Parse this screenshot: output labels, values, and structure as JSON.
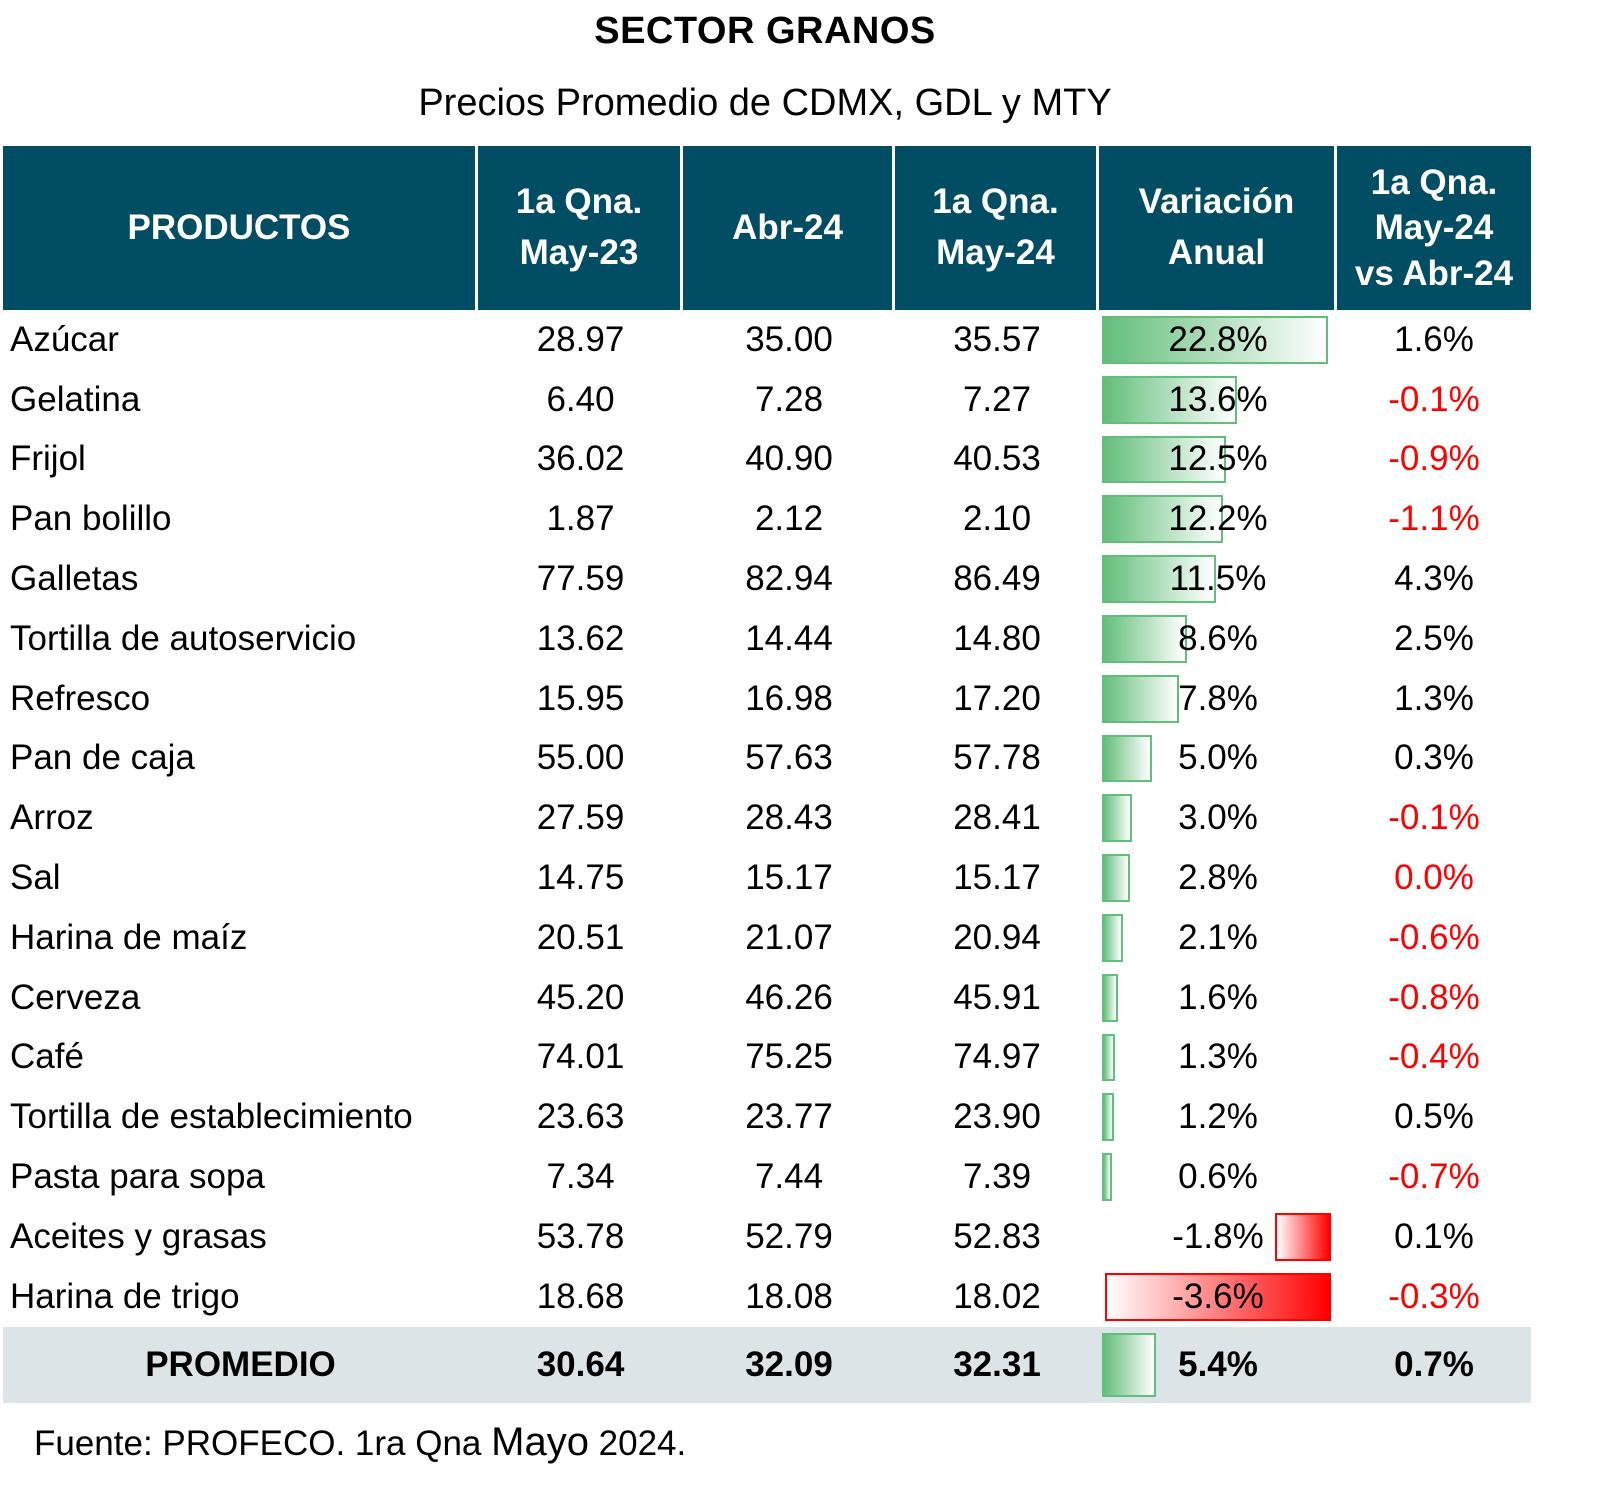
{
  "title": "SECTOR GRANOS",
  "subtitle": "Precios Promedio de CDMX, GDL y MTY",
  "colors": {
    "header_bg": "#014d63",
    "bar_positive": "#63be7b",
    "bar_negative": "#ff0000",
    "negative_text": "#ff0000",
    "average_row_bg": "#dde4e8"
  },
  "headers": {
    "productos": "PRODUCTOS",
    "may23_l1": "1a Qna.",
    "may23_l2": "May-23",
    "abr24": "Abr-24",
    "may24_l1": "1a Qna.",
    "may24_l2": "May-24",
    "var_l1": "Variación",
    "var_l2": "Anual",
    "vs_l1": "1a Qna.",
    "vs_l2": "May-24",
    "vs_l3": "vs Abr-24"
  },
  "rows": [
    {
      "producto": "Azúcar",
      "may23": "28.97",
      "abr24": "35.00",
      "may24": "35.57",
      "variacion": "22.8%",
      "variacion_value": 22.8,
      "vs_abr": "1.6%",
      "vs_negative": false
    },
    {
      "producto": "Gelatina",
      "may23": "6.40",
      "abr24": "7.28",
      "may24": "7.27",
      "variacion": "13.6%",
      "variacion_value": 13.6,
      "vs_abr": "-0.1%",
      "vs_negative": true
    },
    {
      "producto": "Frijol",
      "may23": "36.02",
      "abr24": "40.90",
      "may24": "40.53",
      "variacion": "12.5%",
      "variacion_value": 12.5,
      "vs_abr": "-0.9%",
      "vs_negative": true
    },
    {
      "producto": "Pan bolillo",
      "may23": "1.87",
      "abr24": "2.12",
      "may24": "2.10",
      "variacion": "12.2%",
      "variacion_value": 12.2,
      "vs_abr": "-1.1%",
      "vs_negative": true
    },
    {
      "producto": "Galletas",
      "may23": "77.59",
      "abr24": "82.94",
      "may24": "86.49",
      "variacion": "11.5%",
      "variacion_value": 11.5,
      "vs_abr": "4.3%",
      "vs_negative": false
    },
    {
      "producto": "Tortilla de autoservicio",
      "may23": "13.62",
      "abr24": "14.44",
      "may24": "14.80",
      "variacion": "8.6%",
      "variacion_value": 8.6,
      "vs_abr": "2.5%",
      "vs_negative": false
    },
    {
      "producto": "Refresco",
      "may23": "15.95",
      "abr24": "16.98",
      "may24": "17.20",
      "variacion": "7.8%",
      "variacion_value": 7.8,
      "vs_abr": "1.3%",
      "vs_negative": false
    },
    {
      "producto": "Pan de caja",
      "may23": "55.00",
      "abr24": "57.63",
      "may24": "57.78",
      "variacion": "5.0%",
      "variacion_value": 5.0,
      "vs_abr": "0.3%",
      "vs_negative": false
    },
    {
      "producto": "Arroz",
      "may23": "27.59",
      "abr24": "28.43",
      "may24": "28.41",
      "variacion": "3.0%",
      "variacion_value": 3.0,
      "vs_abr": "-0.1%",
      "vs_negative": true
    },
    {
      "producto": "Sal",
      "may23": "14.75",
      "abr24": "15.17",
      "may24": "15.17",
      "variacion": "2.8%",
      "variacion_value": 2.8,
      "vs_abr": "0.0%",
      "vs_negative": true
    },
    {
      "producto": "Harina de maíz",
      "may23": "20.51",
      "abr24": "21.07",
      "may24": "20.94",
      "variacion": "2.1%",
      "variacion_value": 2.1,
      "vs_abr": "-0.6%",
      "vs_negative": true
    },
    {
      "producto": "Cerveza",
      "may23": "45.20",
      "abr24": "46.26",
      "may24": "45.91",
      "variacion": "1.6%",
      "variacion_value": 1.6,
      "vs_abr": "-0.8%",
      "vs_negative": true
    },
    {
      "producto": "Café",
      "may23": "74.01",
      "abr24": "75.25",
      "may24": "74.97",
      "variacion": "1.3%",
      "variacion_value": 1.3,
      "vs_abr": "-0.4%",
      "vs_negative": true
    },
    {
      "producto": "Tortilla de establecimiento",
      "may23": "23.63",
      "abr24": "23.77",
      "may24": "23.90",
      "variacion": "1.2%",
      "variacion_value": 1.2,
      "vs_abr": "0.5%",
      "vs_negative": false
    },
    {
      "producto": "Pasta para sopa",
      "may23": "7.34",
      "abr24": "7.44",
      "may24": "7.39",
      "variacion": "0.6%",
      "variacion_value": 0.6,
      "vs_abr": "-0.7%",
      "vs_negative": true
    },
    {
      "producto": "Aceites y grasas",
      "may23": "53.78",
      "abr24": "52.79",
      "may24": "52.83",
      "variacion": "-1.8%",
      "variacion_value": -1.8,
      "vs_abr": "0.1%",
      "vs_negative": false
    },
    {
      "producto": "Harina de trigo",
      "may23": "18.68",
      "abr24": "18.08",
      "may24": "18.02",
      "variacion": "-3.6%",
      "variacion_value": -3.6,
      "vs_abr": "-0.3%",
      "vs_negative": true
    }
  ],
  "average": {
    "producto": "PROMEDIO",
    "may23": "30.64",
    "abr24": "32.09",
    "may24": "32.31",
    "variacion": "5.4%",
    "variacion_value": 5.4,
    "vs_abr": "0.7%"
  },
  "source": {
    "prefix": "Fuente: PROFECO. 1ra Qna ",
    "month": "Mayo",
    "suffix": " 2024."
  }
}
